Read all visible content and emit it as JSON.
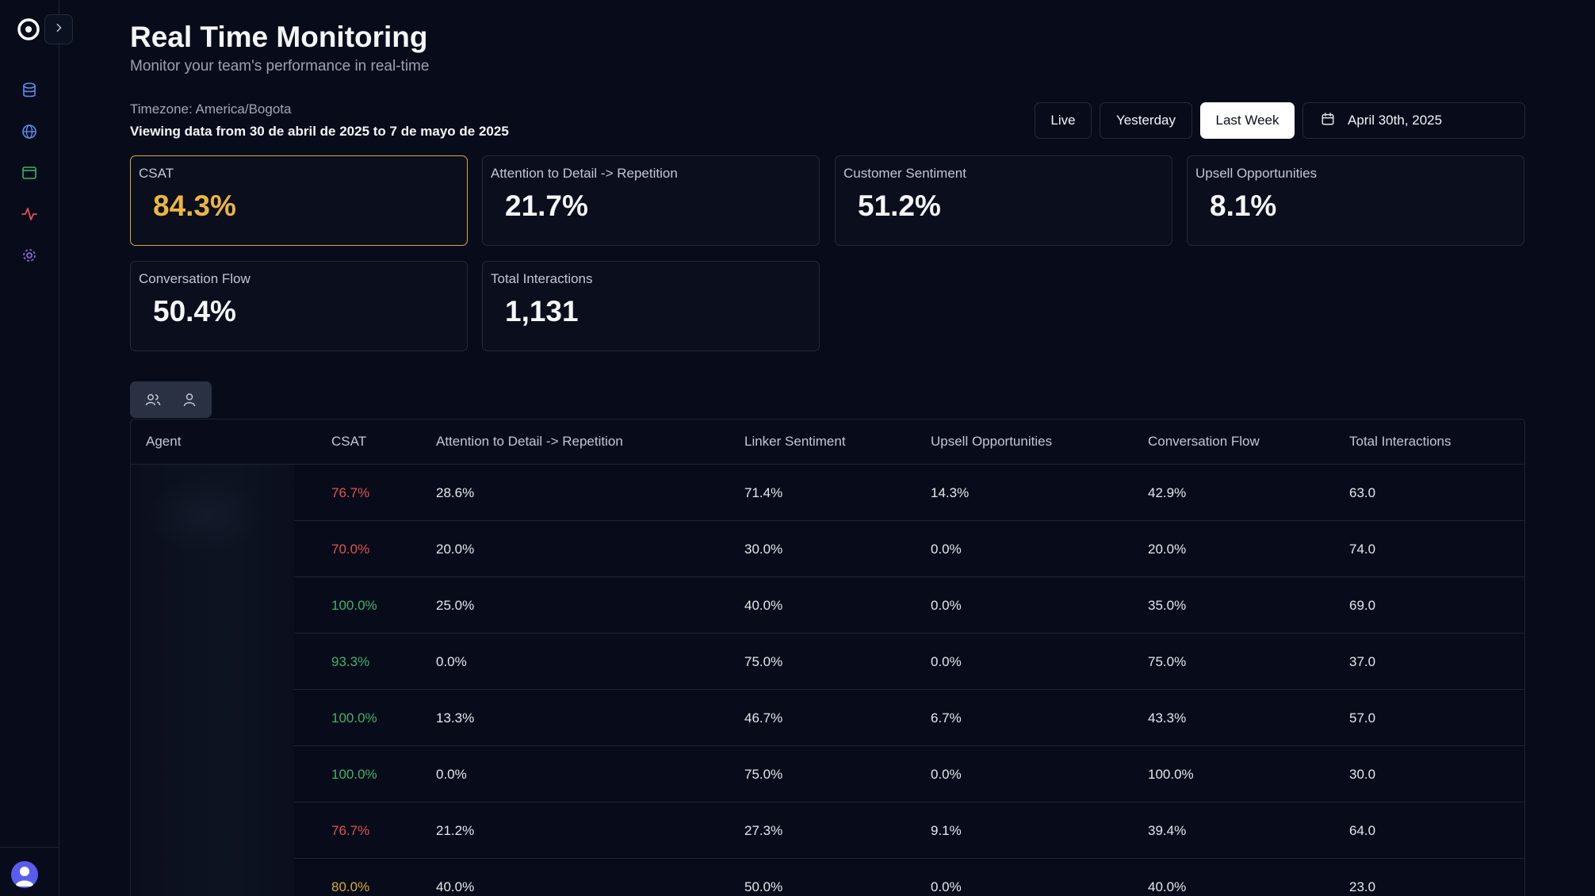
{
  "header": {
    "title": "Real Time Monitoring",
    "subtitle": "Monitor your team's performance in real-time",
    "timezone": "Timezone: America/Bogota",
    "range": "Viewing data from 30 de abril de 2025 to 7 de mayo de 2025"
  },
  "filters": {
    "live": "Live",
    "yesterday": "Yesterday",
    "last_week": "Last Week",
    "active": "Last Week",
    "date": "April 30th, 2025"
  },
  "sidebar": {
    "icons": [
      "database-icon",
      "globe-icon",
      "browser-window-icon",
      "activity-icon",
      "gear-icon"
    ],
    "icon_colors": [
      "#5b8def",
      "#5b8def",
      "#3fb26b",
      "#e05252",
      "#9b6cf0"
    ]
  },
  "kpis": [
    {
      "label": "CSAT",
      "value": "84.3%",
      "highlight": true
    },
    {
      "label": "Attention to Detail -> Repetition",
      "value": "21.7%"
    },
    {
      "label": "Customer Sentiment",
      "value": "51.2%"
    },
    {
      "label": "Upsell Opportunities",
      "value": "8.1%"
    },
    {
      "label": "Conversation Flow",
      "value": "50.4%"
    },
    {
      "label": "Total Interactions",
      "value": "1,131"
    }
  ],
  "table": {
    "columns": [
      "Agent",
      "CSAT",
      "Attention to Detail -> Repetition",
      "Linker Sentiment",
      "Upsell Opportunities",
      "Conversation Flow",
      "Total Interactions"
    ],
    "rows": [
      {
        "csat": "76.7%",
        "csat_status": "red",
        "attention": "28.6%",
        "sentiment": "71.4%",
        "upsell": "14.3%",
        "flow": "42.9%",
        "total": "63.0"
      },
      {
        "csat": "70.0%",
        "csat_status": "red",
        "attention": "20.0%",
        "sentiment": "30.0%",
        "upsell": "0.0%",
        "flow": "20.0%",
        "total": "74.0"
      },
      {
        "csat": "100.0%",
        "csat_status": "green",
        "attention": "25.0%",
        "sentiment": "40.0%",
        "upsell": "0.0%",
        "flow": "35.0%",
        "total": "69.0"
      },
      {
        "csat": "93.3%",
        "csat_status": "green",
        "attention": "0.0%",
        "sentiment": "75.0%",
        "upsell": "0.0%",
        "flow": "75.0%",
        "total": "37.0"
      },
      {
        "csat": "100.0%",
        "csat_status": "green",
        "attention": "13.3%",
        "sentiment": "46.7%",
        "upsell": "6.7%",
        "flow": "43.3%",
        "total": "57.0"
      },
      {
        "csat": "100.0%",
        "csat_status": "green",
        "attention": "0.0%",
        "sentiment": "75.0%",
        "upsell": "0.0%",
        "flow": "100.0%",
        "total": "30.0"
      },
      {
        "csat": "76.7%",
        "csat_status": "red",
        "attention": "21.2%",
        "sentiment": "27.3%",
        "upsell": "9.1%",
        "flow": "39.4%",
        "total": "64.0"
      },
      {
        "csat": "80.0%",
        "csat_status": "amber",
        "attention": "40.0%",
        "sentiment": "50.0%",
        "upsell": "0.0%",
        "flow": "40.0%",
        "total": "23.0"
      }
    ]
  }
}
